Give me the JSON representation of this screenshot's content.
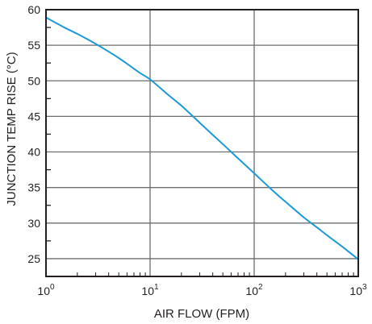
{
  "chart_data": {
    "type": "line",
    "title": "",
    "xlabel": "AIR FLOW (FPM)",
    "ylabel": "JUNCTION TEMP RISE (°C)",
    "x_scale": "log",
    "xlim": [
      1,
      1000
    ],
    "ylim": [
      22.5,
      60
    ],
    "x_ticks": [
      {
        "base": "10",
        "exp": "0",
        "value": 1
      },
      {
        "base": "10",
        "exp": "1",
        "value": 10
      },
      {
        "base": "10",
        "exp": "2",
        "value": 100
      },
      {
        "base": "10",
        "exp": "3",
        "value": 1000
      }
    ],
    "y_ticks": [
      25,
      30,
      35,
      40,
      45,
      50,
      55,
      60
    ],
    "grid": true,
    "line_color": "#1b9ad6",
    "grid_color": "#6d6e71",
    "series": [
      {
        "x": [
          1,
          1.5,
          2,
          3,
          4,
          5,
          6,
          8,
          10,
          15,
          20,
          30,
          40,
          50,
          70,
          100,
          150,
          200,
          300,
          400,
          500,
          700,
          1000
        ],
        "y": [
          58.9,
          57.5,
          56.6,
          55.2,
          54.1,
          53.2,
          52.4,
          51.1,
          50.2,
          48.0,
          46.5,
          44.1,
          42.4,
          41.1,
          39.1,
          37.0,
          34.6,
          33.0,
          30.8,
          29.4,
          28.3,
          26.7,
          24.9
        ]
      }
    ]
  }
}
